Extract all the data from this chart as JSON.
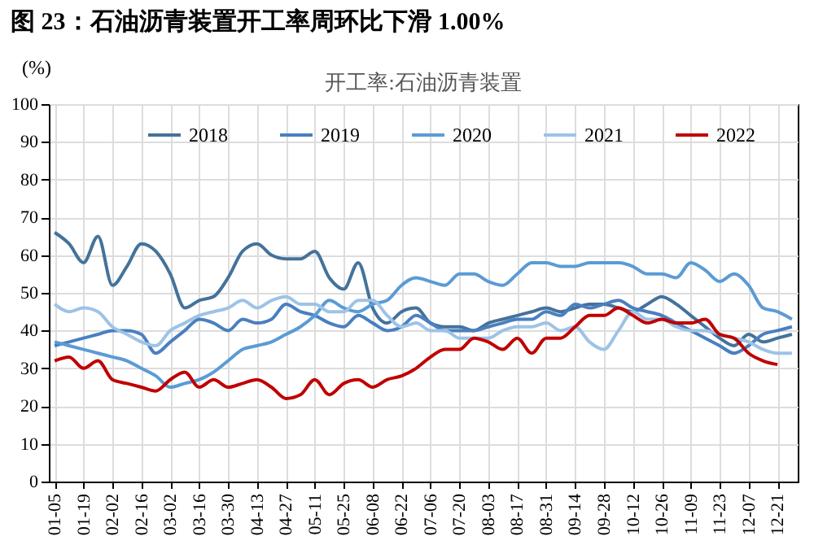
{
  "chart_data": {
    "type": "line",
    "title": "图 23：石油沥青装置开工率周环比下滑 1.00%",
    "subtitle": "开工率:石油沥青装置",
    "ylabel": "(%)",
    "categories": [
      "01-05",
      null,
      "01-19",
      null,
      "02-02",
      null,
      "02-16",
      null,
      "03-02",
      null,
      "03-16",
      null,
      "03-30",
      null,
      "04-13",
      null,
      "04-27",
      null,
      "05-11",
      null,
      "05-25",
      null,
      "06-08",
      null,
      "06-22",
      null,
      "07-06",
      null,
      "07-20",
      null,
      "08-03",
      null,
      "08-17",
      null,
      "08-31",
      null,
      "09-14",
      null,
      "09-28",
      null,
      "10-12",
      null,
      "10-26",
      null,
      "11-09",
      null,
      "11-23",
      null,
      "12-07",
      null,
      "12-21",
      null
    ],
    "series": [
      {
        "name": "2018",
        "color": "#44729a",
        "values": [
          66,
          63,
          58,
          65,
          52,
          57,
          63,
          61,
          55,
          46,
          48,
          49,
          54,
          61,
          63,
          60,
          59,
          59,
          61,
          54,
          51,
          58,
          46,
          42,
          45,
          46,
          42,
          41,
          41,
          40,
          42,
          43,
          44,
          45,
          46,
          45,
          46,
          47,
          47,
          46,
          45,
          47,
          49,
          47,
          44,
          41,
          38,
          36,
          39,
          37,
          38,
          39
        ]
      },
      {
        "name": "2019",
        "color": "#4a7fc0",
        "values": [
          36,
          37,
          38,
          39,
          40,
          40,
          39,
          34,
          37,
          40,
          43,
          42,
          40,
          43,
          42,
          43,
          47,
          45,
          44,
          42,
          41,
          44,
          42,
          40,
          41,
          44,
          42,
          40,
          40,
          40,
          41,
          42,
          43,
          43,
          45,
          44,
          47,
          46,
          47,
          48,
          46,
          45,
          44,
          42,
          40,
          38,
          36,
          34,
          36,
          39,
          40,
          41
        ]
      },
      {
        "name": "2020",
        "color": "#5b9bd5",
        "values": [
          37,
          36,
          35,
          34,
          33,
          32,
          30,
          28,
          25,
          26,
          27,
          29,
          32,
          35,
          36,
          37,
          39,
          41,
          44,
          48,
          46,
          45,
          47,
          48,
          52,
          54,
          53,
          52,
          55,
          55,
          53,
          52,
          55,
          58,
          58,
          57,
          57,
          58,
          58,
          58,
          57,
          55,
          55,
          54,
          58,
          56,
          53,
          55,
          52,
          46,
          45,
          43
        ]
      },
      {
        "name": "2021",
        "color": "#9dc3e6",
        "values": [
          47,
          45,
          46,
          45,
          41,
          39,
          37,
          36,
          40,
          42,
          44,
          45,
          46,
          48,
          46,
          48,
          49,
          47,
          47,
          45,
          45,
          48,
          48,
          44,
          41,
          42,
          40,
          40,
          38,
          38,
          38,
          40,
          41,
          41,
          42,
          40,
          41,
          37,
          35,
          40,
          45,
          43,
          43,
          41,
          40,
          40,
          39,
          38,
          37,
          35,
          34,
          34
        ]
      },
      {
        "name": "2022",
        "color": "#c00000",
        "values": [
          32,
          33,
          30,
          32,
          27,
          26,
          25,
          24,
          27,
          29,
          25,
          27,
          25,
          26,
          27,
          25,
          22,
          23,
          27,
          23,
          26,
          27,
          25,
          27,
          28,
          30,
          33,
          35,
          35,
          38,
          37,
          35,
          38,
          34,
          38,
          38,
          41,
          44,
          44,
          46,
          44,
          42,
          43,
          42,
          42,
          43,
          39,
          38,
          34,
          32,
          31,
          null
        ]
      }
    ],
    "ylim": [
      0,
      100
    ],
    "yticks": [
      0,
      10,
      20,
      30,
      40,
      50,
      60,
      70,
      80,
      90,
      100
    ],
    "grid": true,
    "legend": "top",
    "line_style": "solid"
  }
}
